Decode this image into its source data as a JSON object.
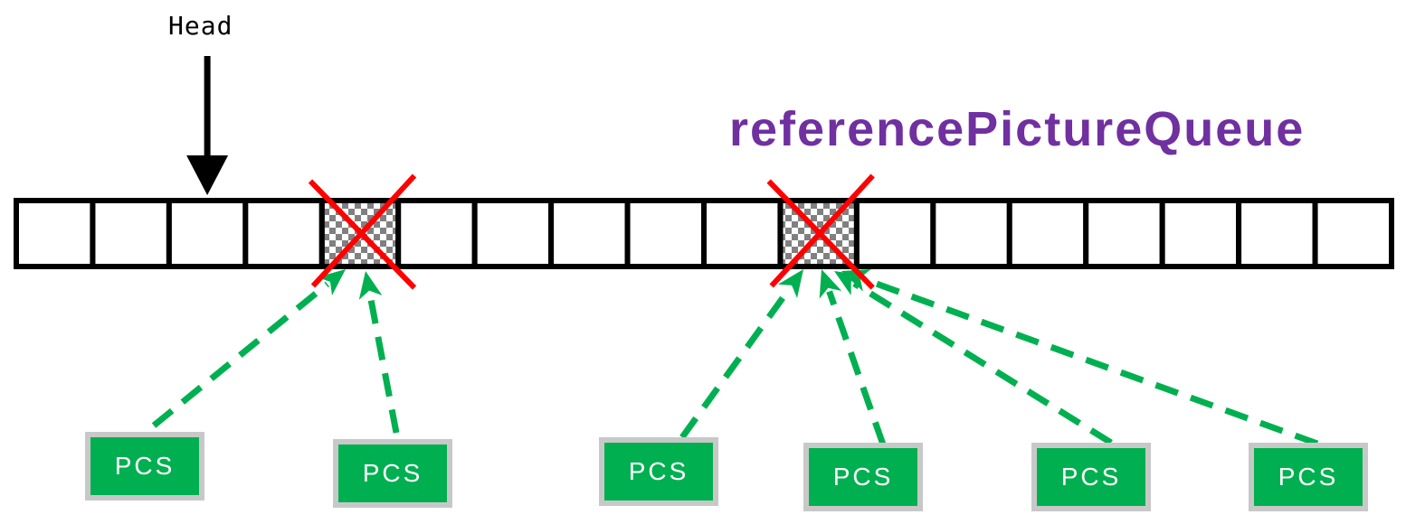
{
  "head_label": "Head",
  "queue_label": "referencePictureQueue",
  "colors": {
    "queue_label": "#7030a0",
    "pcs_fill": "#00b050",
    "pcs_border": "#c8c8c8",
    "reference_arrow": "#00b050",
    "removed_mark": "#ff0000",
    "slot_outline": "#000000"
  },
  "queue": {
    "slot_count": 18,
    "head_slot": 2,
    "removed_slots": [
      4,
      10
    ]
  },
  "pcs_items": [
    {
      "label": "PCS",
      "points_to_slot": 4
    },
    {
      "label": "PCS",
      "points_to_slot": 4
    },
    {
      "label": "PCS",
      "points_to_slot": 10
    },
    {
      "label": "PCS",
      "points_to_slot": 10
    },
    {
      "label": "PCS",
      "points_to_slot": 10
    },
    {
      "label": "PCS",
      "points_to_slot": 10
    }
  ]
}
